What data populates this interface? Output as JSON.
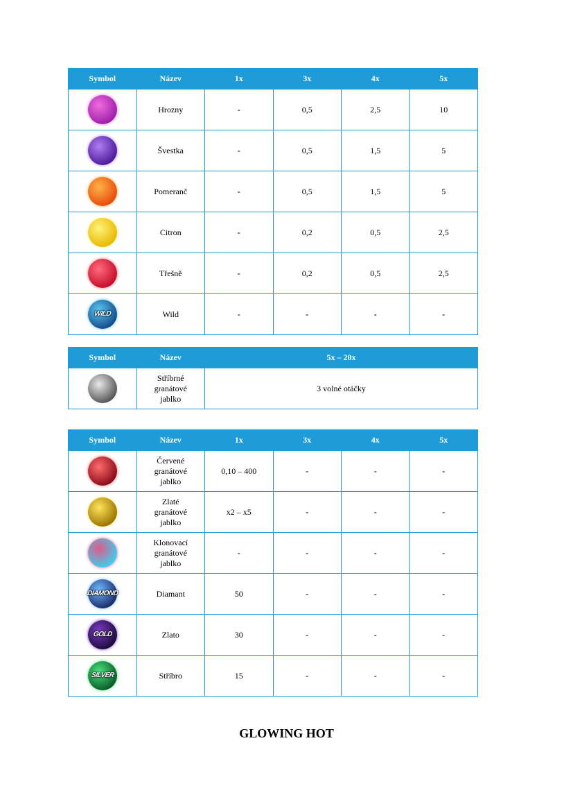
{
  "tables": [
    {
      "headers": [
        "Symbol",
        "Název",
        "1x",
        "3x",
        "4x",
        "5x"
      ],
      "rows": [
        {
          "icon": "grapes-icon",
          "colors": [
            "#f06be0",
            "#9b1fa8"
          ],
          "name": "Hrozny",
          "values": [
            "-",
            "0,5",
            "2,5",
            "10"
          ]
        },
        {
          "icon": "plum-icon",
          "colors": [
            "#b07cf0",
            "#4b1a9a"
          ],
          "name": "Švestka",
          "values": [
            "-",
            "0,5",
            "1,5",
            "5"
          ]
        },
        {
          "icon": "orange-icon",
          "colors": [
            "#ffb347",
            "#e84a0c"
          ],
          "name": "Pomeranč",
          "values": [
            "-",
            "0,5",
            "1,5",
            "5"
          ]
        },
        {
          "icon": "lemon-icon",
          "colors": [
            "#fff27a",
            "#e8b800"
          ],
          "name": "Citron",
          "values": [
            "-",
            "0,2",
            "0,5",
            "2,5"
          ]
        },
        {
          "icon": "cherries-icon",
          "colors": [
            "#ff6b7a",
            "#c40c2a"
          ],
          "name": "Třešně",
          "values": [
            "-",
            "0,2",
            "0,5",
            "2,5"
          ]
        },
        {
          "icon": "wild-icon",
          "colors": [
            "#58c6f0",
            "#144a8a"
          ],
          "label": "WILD",
          "name": "Wild",
          "values": [
            "-",
            "-",
            "-",
            "-"
          ]
        }
      ]
    },
    {
      "headers": [
        "Symbol",
        "Název",
        "5x – 20x"
      ],
      "rows": [
        {
          "icon": "silver-pomegranate-icon",
          "colors": [
            "#e8e8e8",
            "#555"
          ],
          "name": "Stříbrné granátové jablko",
          "values": [
            "3 volné otáčky"
          ]
        }
      ]
    },
    {
      "headers": [
        "Symbol",
        "Název",
        "1x",
        "3x",
        "4x",
        "5x"
      ],
      "rows": [
        {
          "icon": "red-pomegranate-icon",
          "colors": [
            "#ff6b6b",
            "#8a0a1a"
          ],
          "name": "Červené granátové jablko",
          "values": [
            "0,10 – 400",
            "-",
            "-",
            "-"
          ]
        },
        {
          "icon": "gold-pomegranate-icon",
          "colors": [
            "#ffe45c",
            "#9a7300"
          ],
          "name": "Zlaté granátové jablko",
          "values": [
            "x2 – x5",
            "-",
            "-",
            "-"
          ]
        },
        {
          "icon": "clone-pomegranate-icon",
          "colors": [
            "#e05a8a",
            "#3ad0f0"
          ],
          "name": "Klonovací granátové jablko",
          "values": [
            "-",
            "-",
            "-",
            "-"
          ]
        },
        {
          "icon": "diamond-icon",
          "colors": [
            "#6fb8ff",
            "#1a2a6a"
          ],
          "label": "DIAMOND",
          "name": "Diamant",
          "values": [
            "50",
            "-",
            "-",
            "-"
          ]
        },
        {
          "icon": "gold-icon",
          "colors": [
            "#7a3ac0",
            "#1a0a3a"
          ],
          "label": "GOLD",
          "name": "Zlato",
          "values": [
            "30",
            "-",
            "-",
            "-"
          ]
        },
        {
          "icon": "silver-icon",
          "colors": [
            "#4ae07a",
            "#0a5a2a"
          ],
          "label": "SILVER",
          "name": "Stříbro",
          "values": [
            "15",
            "-",
            "-",
            "-"
          ]
        }
      ]
    }
  ],
  "footer_title": "GLOWING HOT",
  "accent": "#1f9cd8"
}
